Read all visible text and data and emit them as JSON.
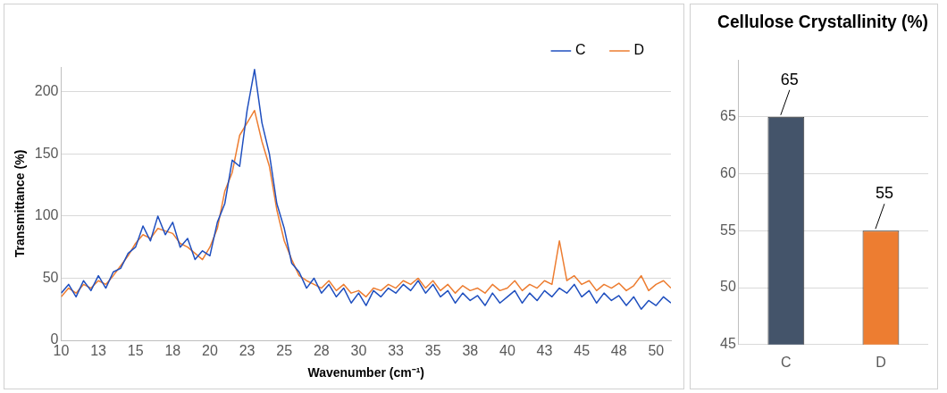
{
  "chart_data": [
    {
      "type": "line",
      "xlabel": "Wavenumber (cm⁻¹)",
      "ylabel": "Transmittance (%)",
      "x": [
        10,
        10.5,
        11,
        11.5,
        12,
        12.5,
        13,
        13.5,
        14,
        14.5,
        15,
        15.5,
        16,
        16.5,
        17,
        17.5,
        18,
        18.5,
        19,
        19.5,
        20,
        20.5,
        21,
        21.5,
        22,
        22.5,
        23,
        23.5,
        24,
        24.5,
        25,
        25.5,
        26,
        26.5,
        27,
        27.5,
        28,
        28.5,
        29,
        29.5,
        30,
        30.5,
        31,
        31.5,
        32,
        32.5,
        33,
        33.5,
        34,
        34.5,
        35,
        35.5,
        36,
        36.5,
        37,
        37.5,
        38,
        38.5,
        39,
        39.5,
        40,
        40.5,
        41,
        41.5,
        42,
        42.5,
        43,
        43.5,
        44,
        44.5,
        45,
        45.5,
        46,
        46.5,
        47,
        47.5,
        48,
        48.5,
        49,
        49.5,
        50,
        50.5,
        51
      ],
      "series": [
        {
          "name": "C",
          "color": "#1f4fbf",
          "values": [
            38,
            45,
            35,
            48,
            40,
            52,
            42,
            55,
            58,
            70,
            75,
            92,
            80,
            100,
            85,
            95,
            75,
            82,
            65,
            72,
            68,
            95,
            110,
            145,
            140,
            185,
            218,
            175,
            150,
            110,
            90,
            62,
            55,
            42,
            50,
            38,
            45,
            35,
            42,
            30,
            38,
            28,
            40,
            35,
            42,
            38,
            45,
            40,
            48,
            38,
            45,
            35,
            40,
            30,
            38,
            32,
            36,
            28,
            38,
            30,
            35,
            40,
            30,
            38,
            32,
            40,
            35,
            42,
            38,
            45,
            35,
            40,
            30,
            38,
            32,
            36,
            28,
            35,
            25,
            32,
            28,
            35,
            30
          ]
        },
        {
          "name": "D",
          "color": "#ed7d31",
          "values": [
            35,
            42,
            38,
            45,
            42,
            48,
            45,
            52,
            60,
            68,
            78,
            85,
            82,
            90,
            88,
            86,
            78,
            75,
            70,
            65,
            75,
            90,
            120,
            135,
            165,
            175,
            185,
            160,
            140,
            105,
            80,
            65,
            52,
            48,
            45,
            42,
            48,
            40,
            45,
            38,
            40,
            35,
            42,
            40,
            45,
            42,
            48,
            45,
            50,
            42,
            48,
            40,
            45,
            38,
            44,
            40,
            42,
            38,
            45,
            40,
            42,
            48,
            40,
            45,
            42,
            48,
            45,
            80,
            48,
            52,
            45,
            48,
            40,
            45,
            42,
            46,
            40,
            44,
            52,
            40,
            45,
            48,
            42
          ]
        }
      ],
      "xlim": [
        10,
        51
      ],
      "xticks": [
        10,
        {
          "value": 12.5,
          "label": "13"
        },
        15,
        {
          "value": 17.5,
          "label": "18"
        },
        20,
        {
          "value": 22.5,
          "label": "23"
        },
        25,
        {
          "value": 27.5,
          "label": "28"
        },
        30,
        {
          "value": 32.5,
          "label": "33"
        },
        35,
        {
          "value": 37.5,
          "label": "38"
        },
        40,
        {
          "value": 42.5,
          "label": "43"
        },
        45,
        {
          "value": 47.5,
          "label": "48"
        },
        50
      ],
      "ylim": [
        0,
        220
      ],
      "yticks": [
        0,
        50,
        100,
        150,
        200
      ],
      "grid": "y",
      "legend": "top right",
      "marker": "none",
      "line_style": "solid"
    },
    {
      "type": "bar",
      "title": "Cellulose Crystallinity (%)",
      "categories": [
        "C",
        "D"
      ],
      "values": [
        65,
        55
      ],
      "colors": [
        "#44546a",
        "#ed7d31"
      ],
      "ylim": [
        45,
        70
      ],
      "yticks": [
        45,
        50,
        55,
        60,
        65
      ],
      "grid": "y",
      "data_labels": true
    }
  ]
}
